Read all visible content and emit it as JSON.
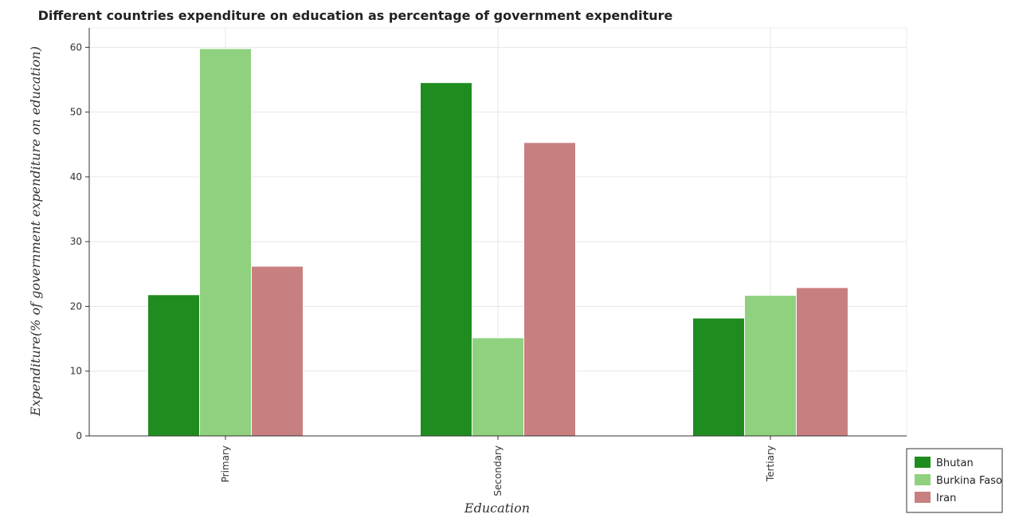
{
  "chart_data": {
    "type": "bar",
    "title": "Different countries expenditure on education as percentage of government expenditure",
    "xlabel": "Education",
    "ylabel": "Expenditure(% of government expenditure on education)",
    "categories": [
      "Primary",
      "Secondary",
      "Tertiary"
    ],
    "series": [
      {
        "name": "Bhutan",
        "color": "#1f8c1f",
        "values": [
          21.8,
          54.55,
          18.2
        ]
      },
      {
        "name": "Burkina Faso",
        "color": "#8fd17f",
        "values": [
          59.8,
          15.15,
          21.7
        ]
      },
      {
        "name": "Iran",
        "color": "#c87f7f",
        "values": [
          26.2,
          45.3,
          22.9
        ]
      }
    ],
    "ylim": [
      0,
      63
    ],
    "yticks": [
      0,
      10,
      20,
      30,
      40,
      50,
      60
    ],
    "grid": true,
    "legend_position": "bottom-right"
  }
}
